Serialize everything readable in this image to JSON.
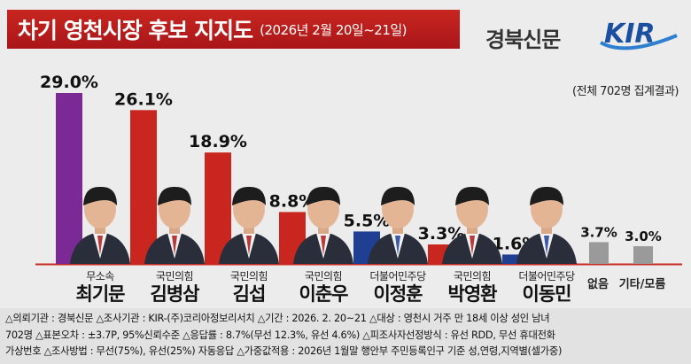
{
  "header": {
    "title": "차기 영천시장 후보 지지도",
    "date": "(2026년 2월 20일~21일)",
    "brand": "경북신문",
    "logo_text": "KIR"
  },
  "note": "(전체 702명 집계결과)",
  "colors": {
    "purple": "#7b2a95",
    "red": "#c8261f",
    "blue": "#1e3f92",
    "gray": "#9a9a9a",
    "baseline": "#c82a24",
    "title_bg": "#b91c1c"
  },
  "candidates": [
    {
      "party": "무소속",
      "name": "최기문",
      "value_label": "29.0%",
      "color": "purple"
    },
    {
      "party": "국민의힘",
      "name": "김병삼",
      "value_label": "26.1%",
      "color": "red"
    },
    {
      "party": "국민의힘",
      "name": "김섭",
      "value_label": "18.9%",
      "color": "red"
    },
    {
      "party": "국민의힘",
      "name": "이춘우",
      "value_label": "8.8%",
      "color": "red"
    },
    {
      "party": "더불어민주당",
      "name": "이정훈",
      "value_label": "5.5%",
      "color": "blue"
    },
    {
      "party": "국민의힘",
      "name": "박영환",
      "value_label": "3.3%",
      "color": "red"
    },
    {
      "party": "더불어민주당",
      "name": "이동민",
      "value_label": "1.6%",
      "color": "blue"
    }
  ],
  "others": [
    {
      "label": "없음",
      "value_label": "3.7%"
    },
    {
      "label": "기타/모름",
      "value_label": "3.0%"
    }
  ],
  "chart_data": {
    "type": "bar",
    "title": "차기 영천시장 후보 지지도",
    "categories": [
      "최기문",
      "김병삼",
      "김섭",
      "이춘우",
      "이정훈",
      "박영환",
      "이동민",
      "없음",
      "기타/모름"
    ],
    "values": [
      29.0,
      26.1,
      18.9,
      8.8,
      5.5,
      3.3,
      1.6,
      3.7,
      3.0
    ],
    "data_labels": [
      "29.0%",
      "26.1%",
      "18.9%",
      "8.8%",
      "5.5%",
      "3.3%",
      "1.6%",
      "3.7%",
      "3.0%"
    ],
    "bar_colors": [
      "#7b2a95",
      "#c8261f",
      "#c8261f",
      "#c8261f",
      "#1e3f92",
      "#c8261f",
      "#1e3f92",
      "#9a9a9a",
      "#9a9a9a"
    ],
    "ylim": [
      0,
      30
    ],
    "grid": false,
    "xlabel": "",
    "ylabel": ""
  },
  "footer": {
    "line1": "△의뢰기관 : 경북신문   △조사기관 : KIR-(주)코리아정보리서치   △기간 : 2026. 2. 20~21   △대상 : 영천시 거주 만 18세  이상 성인 남녀",
    "line2": "702명   △표본오차 : ±3.7P, 95%신뢰수준   △응답률 : 8.7%(무선 12.3%, 유선 4.6%)   △피조사자선정방식 : 유선 RDD, 무선 휴대전화",
    "line3": "가상번호   △조사방법 : 무선(75%), 유선(25%) 자동응답   △가중값적용 : 2026년 1월말 행안부 주민등록인구 기준 성,연령,지역별(셀가중)"
  }
}
